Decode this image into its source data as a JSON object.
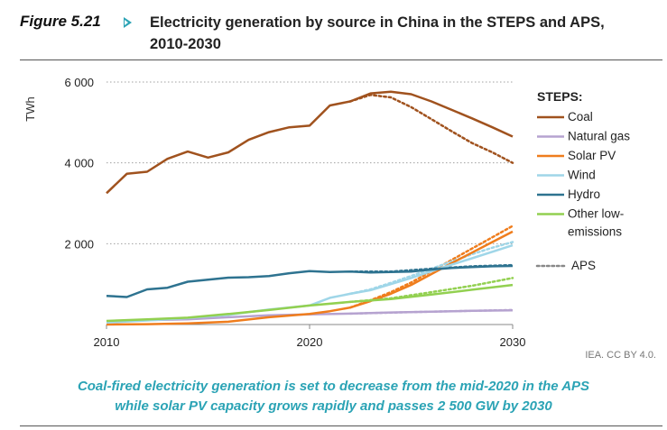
{
  "figure": {
    "label": "Figure 5.21",
    "title_line1": "Electricity generation by source in China in the STEPS and APS,",
    "title_line2": "2010-2030",
    "source": "IEA. CC BY 4.0.",
    "caption_line1": "Coal-fired electricity generation is set to decrease from the mid-2020 in the APS",
    "caption_line2": "while solar PV capacity grows rapidly and passes 2 500 GW by 2030",
    "arrow_icon": "triangle-arrow-icon",
    "accent_color": "#2ba3b5"
  },
  "chart_data": {
    "type": "line",
    "title": "",
    "xlabel": "",
    "ylabel": "TWh",
    "xlim": [
      2010,
      2030
    ],
    "ylim": [
      0,
      6000
    ],
    "xticks": [
      2010,
      2020,
      2030
    ],
    "xtick_labels": [
      "2010",
      "2020",
      "2030"
    ],
    "yticks": [
      2000,
      4000,
      6000
    ],
    "ytick_labels": [
      "2 000",
      "4 000",
      "6 000"
    ],
    "grid": "horizontal dotted",
    "legend_title": "STEPS:",
    "legend_position": "right",
    "aps_label": "APS",
    "series": [
      {
        "name": "Coal",
        "color": "#a0521e",
        "x": [
          2010,
          2011,
          2012,
          2013,
          2014,
          2015,
          2016,
          2017,
          2018,
          2019,
          2020,
          2021,
          2022,
          2023,
          2024,
          2025,
          2026,
          2027,
          2028,
          2029,
          2030
        ],
        "values": [
          3250,
          3730,
          3780,
          4100,
          4280,
          4130,
          4260,
          4570,
          4760,
          4880,
          4920,
          5420,
          5520,
          5720,
          5760,
          5700,
          5520,
          5310,
          5100,
          4880,
          4650
        ]
      },
      {
        "name": "Natural gas",
        "color": "#b6a3d0",
        "x": [
          2010,
          2012,
          2014,
          2016,
          2018,
          2020,
          2022,
          2024,
          2026,
          2028,
          2030
        ],
        "values": [
          80,
          110,
          130,
          180,
          230,
          250,
          270,
          300,
          320,
          340,
          350
        ]
      },
      {
        "name": "Solar PV",
        "color": "#ef7d1d",
        "x": [
          2010,
          2012,
          2014,
          2016,
          2018,
          2020,
          2021,
          2022,
          2023,
          2024,
          2025,
          2026,
          2027,
          2028,
          2029,
          2030
        ],
        "values": [
          0,
          10,
          30,
          70,
          180,
          260,
          330,
          420,
          580,
          760,
          980,
          1250,
          1520,
          1780,
          2040,
          2300
        ]
      },
      {
        "name": "Wind",
        "color": "#9fd6e8",
        "x": [
          2010,
          2012,
          2014,
          2016,
          2018,
          2020,
          2021,
          2022,
          2023,
          2024,
          2025,
          2026,
          2027,
          2028,
          2029,
          2030
        ],
        "values": [
          50,
          100,
          160,
          240,
          370,
          470,
          660,
          760,
          850,
          1000,
          1150,
          1320,
          1480,
          1640,
          1800,
          1960
        ]
      },
      {
        "name": "Hydro",
        "color": "#2e7390",
        "x": [
          2010,
          2011,
          2012,
          2013,
          2014,
          2015,
          2016,
          2017,
          2018,
          2019,
          2020,
          2021,
          2022,
          2023,
          2024,
          2025,
          2026,
          2027,
          2028,
          2029,
          2030
        ],
        "values": [
          710,
          680,
          870,
          910,
          1060,
          1110,
          1160,
          1170,
          1200,
          1270,
          1320,
          1300,
          1310,
          1290,
          1300,
          1310,
          1360,
          1400,
          1420,
          1440,
          1450
        ]
      },
      {
        "name": "Other low-emissions",
        "legend_lines": [
          "Other low-",
          "emissions"
        ],
        "color": "#92d050",
        "x": [
          2010,
          2012,
          2014,
          2016,
          2018,
          2020,
          2022,
          2024,
          2026,
          2028,
          2030
        ],
        "values": [
          90,
          130,
          170,
          260,
          360,
          470,
          560,
          630,
          740,
          860,
          980
        ]
      }
    ],
    "aps_series": [
      {
        "name": "Coal",
        "color": "#a0521e",
        "x": [
          2022,
          2023,
          2024,
          2025,
          2026,
          2027,
          2028,
          2029,
          2030
        ],
        "values": [
          5520,
          5680,
          5620,
          5380,
          5080,
          4780,
          4490,
          4260,
          4000
        ]
      },
      {
        "name": "Solar PV",
        "color": "#ef7d1d",
        "x": [
          2022,
          2023,
          2024,
          2025,
          2026,
          2027,
          2028,
          2029,
          2030
        ],
        "values": [
          420,
          600,
          800,
          1040,
          1320,
          1600,
          1880,
          2160,
          2440
        ]
      },
      {
        "name": "Wind",
        "color": "#9fd6e8",
        "x": [
          2022,
          2023,
          2024,
          2025,
          2026,
          2027,
          2028,
          2029,
          2030
        ],
        "values": [
          760,
          870,
          1030,
          1200,
          1380,
          1560,
          1740,
          1900,
          2040
        ]
      },
      {
        "name": "Hydro",
        "color": "#2e7390",
        "x": [
          2022,
          2024,
          2026,
          2028,
          2030
        ],
        "values": [
          1310,
          1310,
          1380,
          1440,
          1470
        ]
      },
      {
        "name": "Other low-emissions",
        "color": "#92d050",
        "x": [
          2022,
          2024,
          2026,
          2028,
          2030
        ],
        "values": [
          560,
          650,
          800,
          960,
          1150
        ]
      },
      {
        "name": "Natural gas",
        "color": "#b6a3d0",
        "x": [
          2022,
          2026,
          2030
        ],
        "values": [
          270,
          320,
          360
        ]
      }
    ]
  }
}
